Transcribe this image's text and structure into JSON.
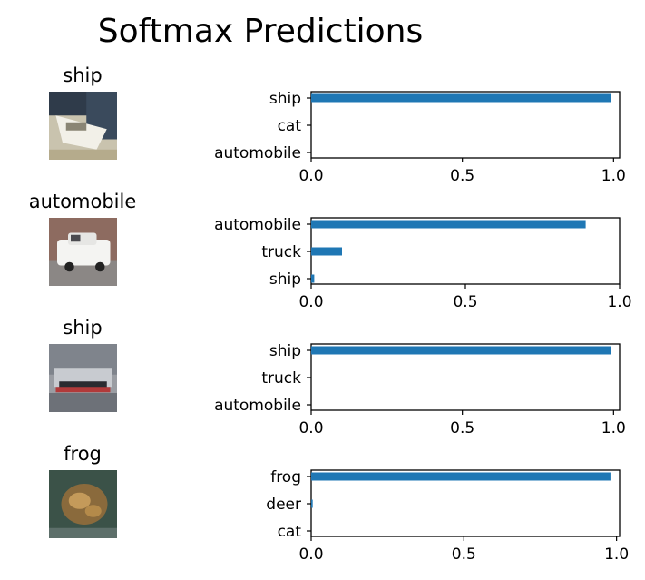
{
  "figure": {
    "title": "Softmax Predictions"
  },
  "colors": {
    "bar": "#1f77b4",
    "axis": "#000000",
    "background": "#ffffff"
  },
  "chart_data": [
    {
      "type": "bar",
      "orientation": "horizontal",
      "image_title": "ship",
      "thumbnail": "ship",
      "categories": [
        "ship",
        "cat",
        "automobile"
      ],
      "values": [
        0.99,
        0.0,
        0.0
      ],
      "xlim": [
        0,
        1.02
      ],
      "xticks": [
        0.0,
        0.5,
        1.0
      ],
      "xtick_labels": [
        "0.0",
        "0.5",
        "1.0"
      ]
    },
    {
      "type": "bar",
      "orientation": "horizontal",
      "image_title": "automobile",
      "thumbnail": "automobile",
      "categories": [
        "automobile",
        "truck",
        "ship"
      ],
      "values": [
        0.89,
        0.1,
        0.01
      ],
      "xlim": [
        0,
        1.0
      ],
      "xticks": [
        0.0,
        0.5,
        1.0
      ],
      "xtick_labels": [
        "0.0",
        "0.5",
        "1.0"
      ]
    },
    {
      "type": "bar",
      "orientation": "horizontal",
      "image_title": "ship",
      "thumbnail": "hovercraft",
      "categories": [
        "ship",
        "truck",
        "automobile"
      ],
      "values": [
        0.99,
        0.0,
        0.0
      ],
      "xlim": [
        0,
        1.02
      ],
      "xticks": [
        0.0,
        0.5,
        1.0
      ],
      "xtick_labels": [
        "0.0",
        "0.5",
        "1.0"
      ]
    },
    {
      "type": "bar",
      "orientation": "horizontal",
      "image_title": "frog",
      "thumbnail": "frog",
      "categories": [
        "frog",
        "deer",
        "cat"
      ],
      "values": [
        0.98,
        0.005,
        0.0
      ],
      "xlim": [
        0,
        1.01
      ],
      "xticks": [
        0.0,
        0.5,
        1.0
      ],
      "xtick_labels": [
        "0.0",
        "0.5",
        "1.0"
      ]
    }
  ]
}
